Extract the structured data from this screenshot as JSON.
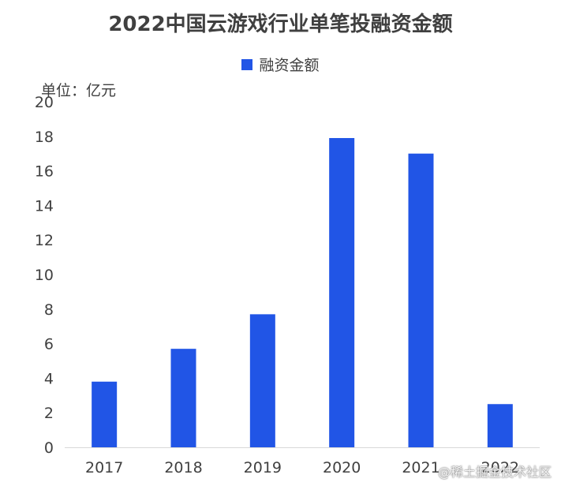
{
  "chart_data": {
    "type": "bar",
    "title": "2022中国云游戏行业单笔投融资金额",
    "unit_label": "单位：亿元",
    "categories": [
      "2017",
      "2018",
      "2019",
      "2020",
      "2021",
      "2022"
    ],
    "series": [
      {
        "name": "融资金额",
        "color": "#2155e6",
        "values": [
          3.8,
          5.7,
          7.7,
          17.9,
          17.0,
          2.5
        ]
      }
    ],
    "ylim": [
      0,
      20
    ],
    "yticks": [
      "0",
      "2",
      "4",
      "6",
      "8",
      "10",
      "12",
      "14",
      "16",
      "18",
      "20"
    ],
    "grid": false,
    "legend": "top-center"
  },
  "watermark": "@稀土掘金技术社区"
}
